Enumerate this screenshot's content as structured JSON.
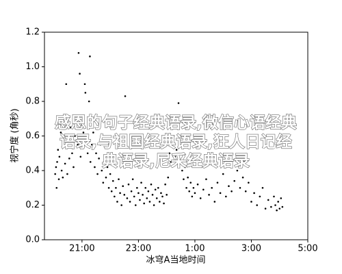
{
  "chart_data": {
    "type": "scatter",
    "x_label": "冰穹A当地时间",
    "y_label": "视宁度 (角秒)",
    "color": "#000000",
    "xlim": [
      19.67,
      29
    ],
    "xticks": [
      {
        "value": 21,
        "label": "21:00"
      },
      {
        "value": 23,
        "label": "23:00"
      },
      {
        "value": 25,
        "label": "1:00"
      },
      {
        "value": 27,
        "label": "3:00"
      },
      {
        "value": 29,
        "label": "5:00"
      }
    ],
    "ylim": [
      0,
      1.2
    ],
    "yticks": [
      {
        "value": 0,
        "label": "0.0"
      },
      0.2,
      0.4,
      0.6,
      0.8,
      {
        "value": 1,
        "label": "1.0"
      },
      1.2
    ],
    "x": [
      20.05,
      20.08,
      20.1,
      20.12,
      20.15,
      20.18,
      20.2,
      20.25,
      20.28,
      20.32,
      20.35,
      20.4,
      20.44,
      20.48,
      20.52,
      20.55,
      20.6,
      20.65,
      20.7,
      20.75,
      20.8,
      20.85,
      20.88,
      20.92,
      20.95,
      21.0,
      21.05,
      21.1,
      21.12,
      21.15,
      21.2,
      21.25,
      21.28,
      21.3,
      21.35,
      21.4,
      21.45,
      21.5,
      21.55,
      21.6,
      21.65,
      21.7,
      21.75,
      21.8,
      21.85,
      21.9,
      21.95,
      22.0,
      22.05,
      22.1,
      22.15,
      22.2,
      22.25,
      22.3,
      22.35,
      22.4,
      22.45,
      22.5,
      22.53,
      22.6,
      22.65,
      22.7,
      22.75,
      22.8,
      22.85,
      22.9,
      22.95,
      23.0,
      23.05,
      23.1,
      23.15,
      23.2,
      23.25,
      23.3,
      23.35,
      23.4,
      23.45,
      23.5,
      23.55,
      23.6,
      23.65,
      23.7,
      23.75,
      23.8,
      23.85,
      23.9,
      23.95,
      24.0,
      24.05,
      24.1,
      24.15,
      24.2,
      24.25,
      24.3,
      24.35,
      24.42,
      24.45,
      24.5,
      24.55,
      24.6,
      24.65,
      24.7,
      24.75,
      24.8,
      24.85,
      24.9,
      24.95,
      25.0,
      25.1,
      25.2,
      25.3,
      25.4,
      25.5,
      25.6,
      25.7,
      25.8,
      25.9,
      26.0,
      26.1,
      26.2,
      26.3,
      26.4,
      26.5,
      26.6,
      26.7,
      26.75,
      26.8,
      26.9,
      27.0,
      27.1,
      27.2,
      27.3,
      27.4,
      27.5,
      27.6,
      27.7,
      27.8,
      27.85,
      27.9,
      27.95,
      28.0,
      28.05,
      28.1
    ],
    "values": [
      0.38,
      0.42,
      0.3,
      0.45,
      0.52,
      0.35,
      0.48,
      0.62,
      0.4,
      0.36,
      0.55,
      0.44,
      0.9,
      0.38,
      0.58,
      0.47,
      0.65,
      0.5,
      0.42,
      0.6,
      0.7,
      0.55,
      1.08,
      0.96,
      0.48,
      0.68,
      0.62,
      0.9,
      0.85,
      0.58,
      0.5,
      0.8,
      1.06,
      0.45,
      0.55,
      0.62,
      0.42,
      0.5,
      0.38,
      0.47,
      0.55,
      0.4,
      0.33,
      0.45,
      0.36,
      0.42,
      0.3,
      0.38,
      0.28,
      0.34,
      0.25,
      0.3,
      0.22,
      0.35,
      0.27,
      0.2,
      0.31,
      0.26,
      0.83,
      0.24,
      0.32,
      0.22,
      0.28,
      0.35,
      0.25,
      0.2,
      0.3,
      0.27,
      0.23,
      0.33,
      0.26,
      0.21,
      0.3,
      0.24,
      0.28,
      0.22,
      0.32,
      0.26,
      0.2,
      0.29,
      0.24,
      0.3,
      0.22,
      0.27,
      0.25,
      0.21,
      0.32,
      0.26,
      0.36,
      0.5,
      0.45,
      0.55,
      0.6,
      0.48,
      0.52,
      0.79,
      0.58,
      0.45,
      0.4,
      0.35,
      0.42,
      0.3,
      0.36,
      0.28,
      0.33,
      0.25,
      0.3,
      0.27,
      0.32,
      0.24,
      0.29,
      0.35,
      0.26,
      0.3,
      0.22,
      0.33,
      0.27,
      0.38,
      0.25,
      0.31,
      0.28,
      0.34,
      0.4,
      0.3,
      0.36,
      0.45,
      0.28,
      0.33,
      0.22,
      0.27,
      0.2,
      0.25,
      0.3,
      0.18,
      0.23,
      0.19,
      0.25,
      0.2,
      0.17,
      0.22,
      0.18,
      0.24,
      0.19
    ]
  },
  "watermark": [
    "感恩的句子经典语录,微信心语经典",
    "语录,与祖国经典语录,狂人日记经",
    "典语录,尼采经典语录"
  ]
}
